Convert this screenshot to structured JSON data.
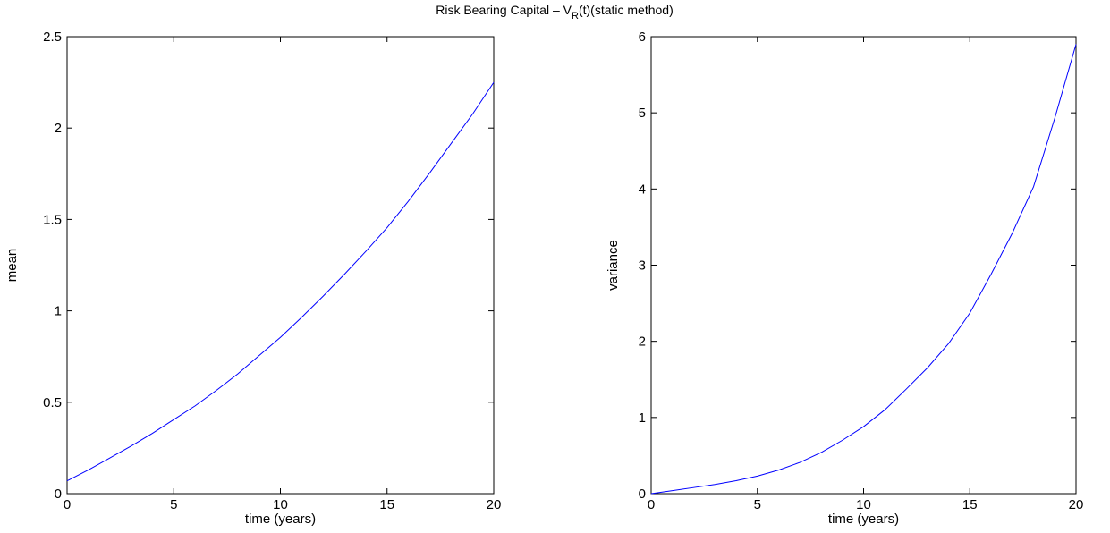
{
  "figure": {
    "title_main": "Risk Bearing Capital – V",
    "title_sub": "R",
    "title_tail": "(t)(static method)"
  },
  "chart_data": [
    {
      "type": "line",
      "xlabel": "time (years)",
      "ylabel": "mean",
      "xlim": [
        0,
        20
      ],
      "ylim": [
        0,
        2.5
      ],
      "xticks": [
        0,
        5,
        10,
        15,
        20
      ],
      "yticks": [
        0,
        0.5,
        1,
        1.5,
        2,
        2.5
      ],
      "xtick_labels": [
        "0",
        "5",
        "10",
        "15",
        "20"
      ],
      "ytick_labels": [
        "0",
        "0.5",
        "1",
        "1.5",
        "2",
        "2.5"
      ],
      "grid": false,
      "line_color": "#0000ff",
      "series": [
        {
          "x": [
            0,
            1,
            2,
            3,
            4,
            5,
            6,
            7,
            8,
            9,
            10,
            11,
            12,
            13,
            14,
            15,
            16,
            17,
            18,
            19,
            20
          ],
          "y": [
            0.07,
            0.13,
            0.195,
            0.26,
            0.33,
            0.405,
            0.48,
            0.565,
            0.655,
            0.755,
            0.855,
            0.965,
            1.08,
            1.2,
            1.325,
            1.455,
            1.6,
            1.755,
            1.915,
            2.075,
            2.25
          ]
        }
      ]
    },
    {
      "type": "line",
      "xlabel": "time (years)",
      "ylabel": "variance",
      "xlim": [
        0,
        20
      ],
      "ylim": [
        0,
        6
      ],
      "xticks": [
        0,
        5,
        10,
        15,
        20
      ],
      "yticks": [
        0,
        1,
        2,
        3,
        4,
        5,
        6
      ],
      "xtick_labels": [
        "0",
        "5",
        "10",
        "15",
        "20"
      ],
      "ytick_labels": [
        "0",
        "1",
        "2",
        "3",
        "4",
        "5",
        "6"
      ],
      "grid": false,
      "line_color": "#0000ff",
      "series": [
        {
          "x": [
            0,
            1,
            2,
            3,
            4,
            5,
            6,
            7,
            8,
            9,
            10,
            11,
            12,
            13,
            14,
            15,
            16,
            17,
            18,
            19,
            20
          ],
          "y": [
            0.0,
            0.04,
            0.08,
            0.12,
            0.17,
            0.23,
            0.31,
            0.41,
            0.54,
            0.7,
            0.88,
            1.1,
            1.37,
            1.65,
            1.97,
            2.37,
            2.88,
            3.42,
            4.03,
            4.93,
            5.9
          ]
        }
      ]
    }
  ]
}
